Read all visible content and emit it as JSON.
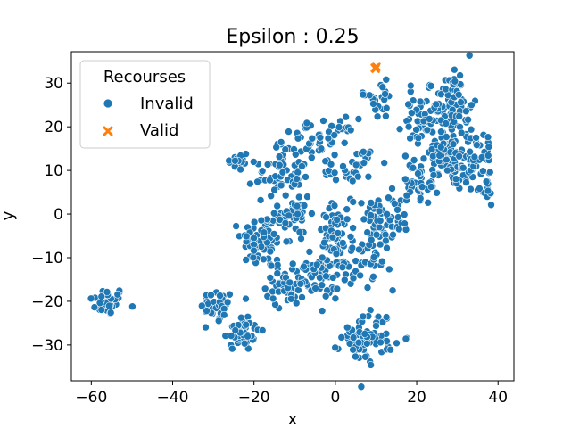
{
  "chart_data": {
    "type": "scatter",
    "title": "Epsilon : 0.25",
    "xlabel": "x",
    "ylabel": "y",
    "xlim": [
      -64.9,
      43.9
    ],
    "ylim": [
      -38.2,
      37.2
    ],
    "xticks": [
      -60,
      -40,
      -20,
      0,
      20,
      40
    ],
    "yticks": [
      -30,
      -20,
      -10,
      0,
      10,
      20,
      30
    ],
    "grid": false,
    "legend": {
      "title": "Recourses",
      "placement": "top-left",
      "entries": [
        {
          "label": "Invalid",
          "marker": "circle",
          "color": "#1f77b4"
        },
        {
          "label": "Valid",
          "marker": "x",
          "color": "#ff7f0e"
        }
      ]
    },
    "series": [
      {
        "name": "Invalid",
        "marker": "circle",
        "color": "#1f77b4",
        "clusters": [
          {
            "cx": -56,
            "cy": -20,
            "sx": 2.2,
            "sy": 1.6,
            "n": 40
          },
          {
            "cx": -29,
            "cy": -21,
            "sx": 2.0,
            "sy": 1.8,
            "n": 32
          },
          {
            "cx": -23,
            "cy": -27,
            "sx": 2.2,
            "sy": 2.2,
            "n": 45
          },
          {
            "cx": -24,
            "cy": 12,
            "sx": 1.4,
            "sy": 1.3,
            "n": 18
          },
          {
            "cx": -18,
            "cy": -6,
            "sx": 2.6,
            "sy": 3.2,
            "n": 70
          },
          {
            "cx": -14,
            "cy": 9,
            "sx": 2.8,
            "sy": 2.5,
            "n": 55
          },
          {
            "cx": -10,
            "cy": 0,
            "sx": 2.0,
            "sy": 4.0,
            "n": 45
          },
          {
            "cx": -12,
            "cy": -16,
            "sx": 2.5,
            "sy": 2.4,
            "n": 45
          },
          {
            "cx": -6,
            "cy": -15,
            "sx": 3.0,
            "sy": 2.5,
            "n": 45
          },
          {
            "cx": -4,
            "cy": 17,
            "sx": 4.5,
            "sy": 2.4,
            "n": 55
          },
          {
            "cx": 0,
            "cy": -7,
            "sx": 2.2,
            "sy": 4.5,
            "n": 70
          },
          {
            "cx": 3,
            "cy": 10,
            "sx": 3.0,
            "sy": 1.3,
            "n": 25
          },
          {
            "cx": 5,
            "cy": -13,
            "sx": 2.2,
            "sy": 2.2,
            "n": 25
          },
          {
            "cx": 8,
            "cy": -28,
            "sx": 3.2,
            "sy": 3.0,
            "n": 70
          },
          {
            "cx": 10,
            "cy": -4,
            "sx": 3.0,
            "sy": 4.5,
            "n": 70
          },
          {
            "cx": 11,
            "cy": 26,
            "sx": 2.0,
            "sy": 2.2,
            "n": 20
          },
          {
            "cx": 20,
            "cy": 7,
            "sx": 2.6,
            "sy": 2.4,
            "n": 40
          },
          {
            "cx": 21,
            "cy": 21,
            "sx": 2.4,
            "sy": 3.5,
            "n": 45
          },
          {
            "cx": 26,
            "cy": 15,
            "sx": 3.0,
            "sy": 2.4,
            "n": 55
          },
          {
            "cx": 29,
            "cy": 25,
            "sx": 2.4,
            "sy": 3.3,
            "n": 65
          },
          {
            "cx": 30,
            "cy": 10,
            "sx": 3.5,
            "sy": 2.4,
            "n": 60
          },
          {
            "cx": 35,
            "cy": 15,
            "sx": 2.0,
            "sy": 3.2,
            "n": 30
          },
          {
            "cx": 37,
            "cy": 5,
            "sx": 1.2,
            "sy": 1.8,
            "n": 12
          },
          {
            "cx": 16,
            "cy": -2,
            "sx": 1.5,
            "sy": 1.5,
            "n": 6
          },
          {
            "cx": 7,
            "cy": 13,
            "sx": 1.2,
            "sy": 1.0,
            "n": 8
          },
          {
            "cx": 30,
            "cy": 31,
            "sx": 1.2,
            "sy": 1.0,
            "n": 8
          },
          {
            "cx": 7,
            "cy": 28,
            "sx": 0.6,
            "sy": 0.6,
            "n": 3
          }
        ]
      },
      {
        "name": "Valid",
        "marker": "x",
        "color": "#ff7f0e",
        "points": [
          [
            9.7,
            33.5
          ],
          [
            10.1,
            33.7
          ],
          [
            9.9,
            33.3
          ]
        ]
      }
    ]
  }
}
